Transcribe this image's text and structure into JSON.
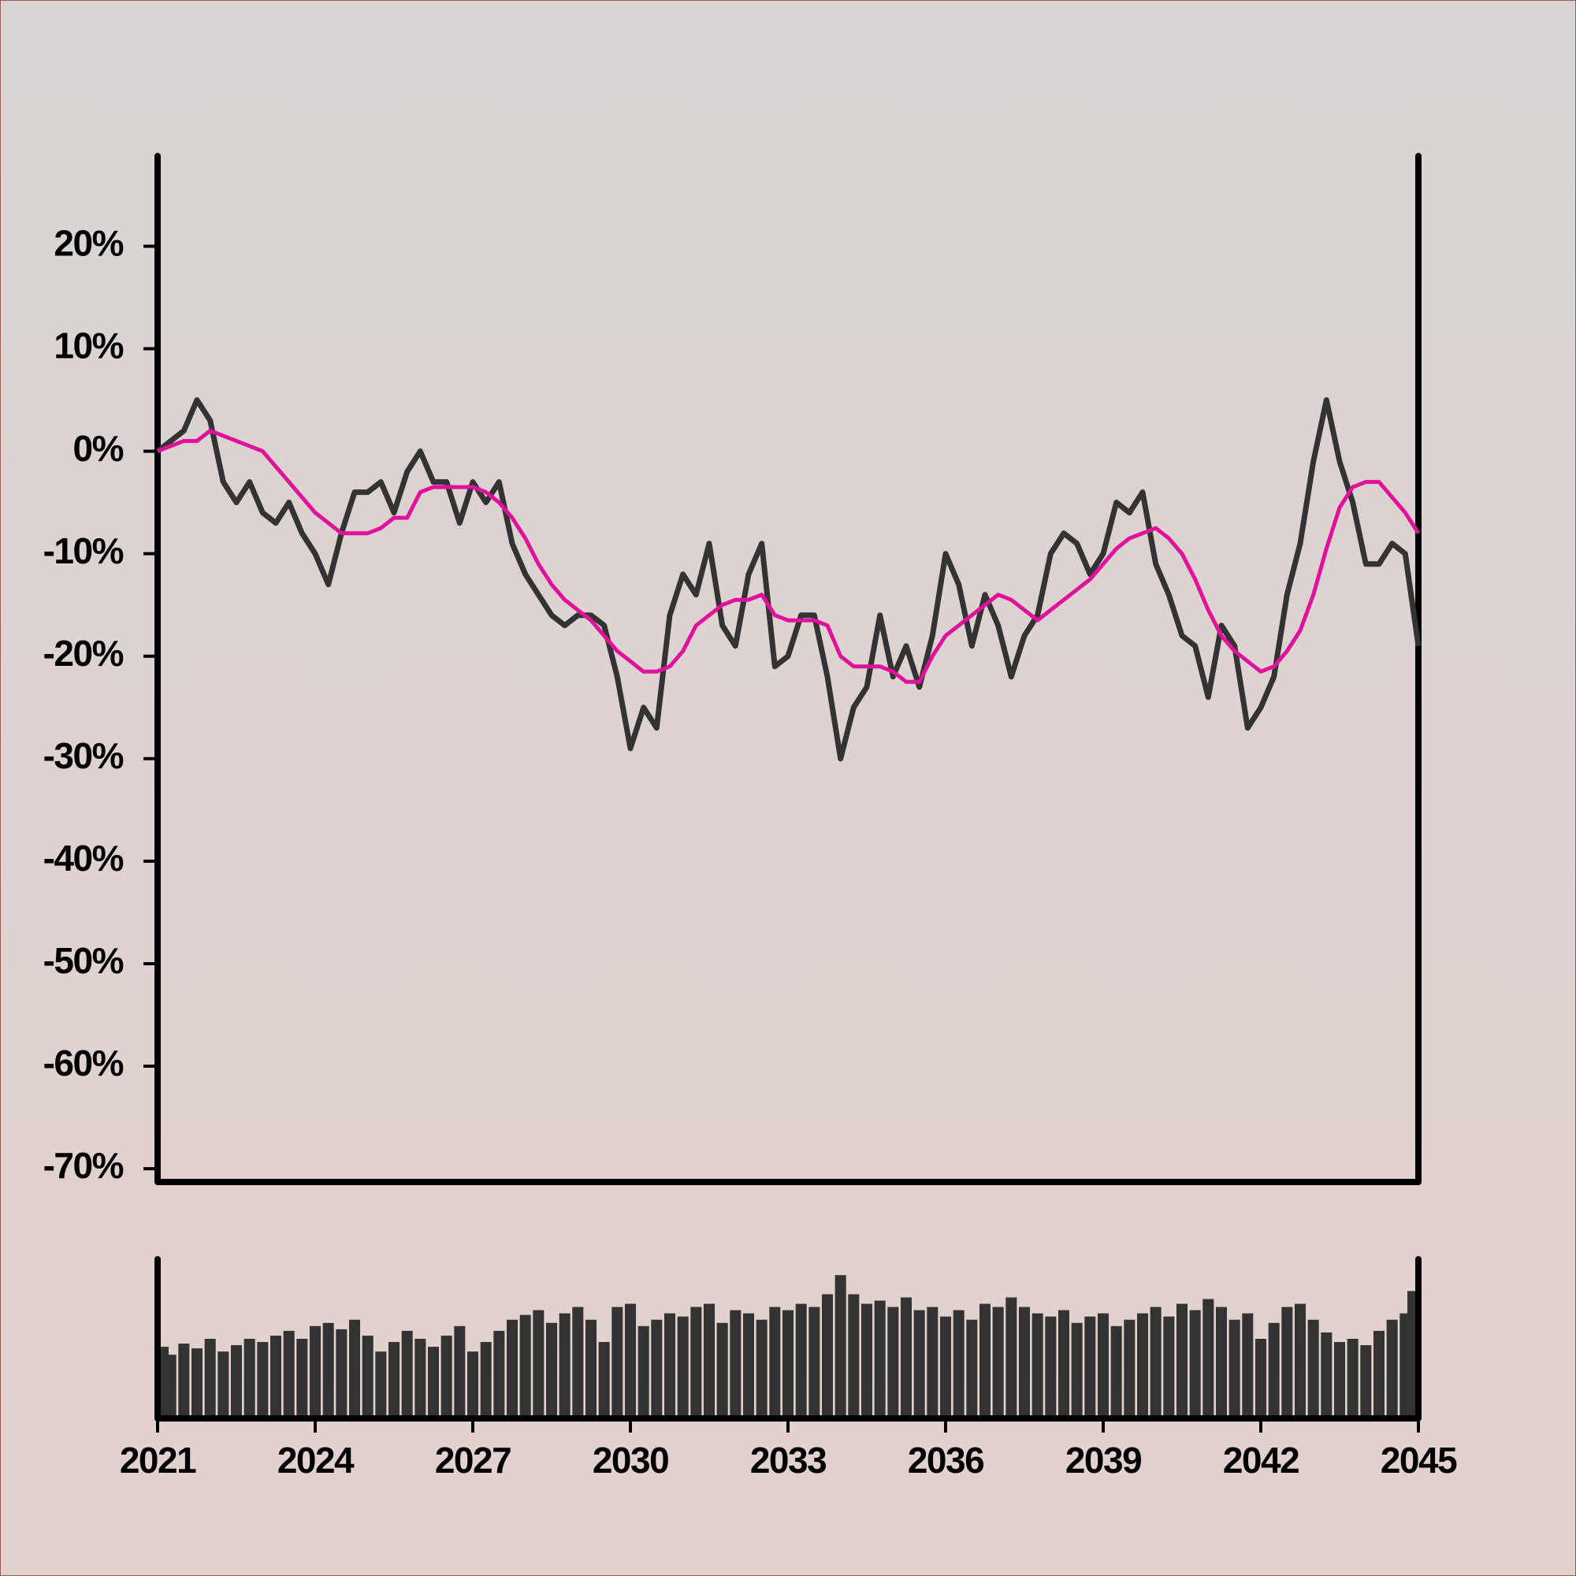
{
  "chart_data": [
    {
      "type": "line",
      "x": [
        2021,
        2021.25,
        2021.5,
        2021.75,
        2022,
        2022.25,
        2022.5,
        2022.75,
        2023,
        2023.25,
        2023.5,
        2023.75,
        2024,
        2024.25,
        2024.5,
        2024.75,
        2025,
        2025.25,
        2025.5,
        2025.75,
        2026,
        2026.25,
        2026.5,
        2026.75,
        2027,
        2027.25,
        2027.5,
        2027.75,
        2028,
        2028.25,
        2028.5,
        2028.75,
        2029,
        2029.25,
        2029.5,
        2029.75,
        2030,
        2030.25,
        2030.5,
        2030.75,
        2031,
        2031.25,
        2031.5,
        2031.75,
        2032,
        2032.25,
        2032.5,
        2032.75,
        2033,
        2033.25,
        2033.5,
        2033.75,
        2034,
        2034.25,
        2034.5,
        2034.75,
        2035,
        2035.25,
        2035.5,
        2035.75,
        2036,
        2036.25,
        2036.5,
        2036.75,
        2037,
        2037.25,
        2037.5,
        2037.75,
        2038,
        2038.25,
        2038.5,
        2038.75,
        2039,
        2039.25,
        2039.5,
        2039.75,
        2040,
        2040.25,
        2040.5,
        2040.75,
        2041,
        2041.25,
        2041.5,
        2041.75,
        2042,
        2042.25,
        2042.5,
        2042.75,
        2043,
        2043.25,
        2043.5,
        2043.75,
        2044,
        2044.25,
        2044.5,
        2044.75,
        2045
      ],
      "series": [
        {
          "color": "#333333",
          "values": [
            0,
            1,
            2,
            5,
            3,
            -3,
            -5,
            -3,
            -6,
            -7,
            -5,
            -8,
            -10,
            -13,
            -8,
            -4,
            -4,
            -3,
            -6,
            -2,
            0,
            -3,
            -3,
            -7,
            -3,
            -5,
            -3,
            -9,
            -12,
            -14,
            -16,
            -17,
            -16,
            -16,
            -17,
            -22,
            -29,
            -25,
            -27,
            -16,
            -12,
            -14,
            -9,
            -17,
            -19,
            -12,
            -9,
            -21,
            -20,
            -16,
            -16,
            -22,
            -30,
            -25,
            -23,
            -16,
            -22,
            -19,
            -23,
            -18,
            -10,
            -13,
            -19,
            -14,
            -17,
            -22,
            -18,
            -16,
            -10,
            -8,
            -9,
            -12,
            -10,
            -5,
            -6,
            -4,
            -11,
            -14,
            -18,
            -19,
            -24,
            -17,
            -19,
            -27,
            -25,
            -22,
            -14,
            -9,
            -1,
            5,
            -1,
            -5,
            -11,
            -11,
            -9,
            -10,
            -19
          ]
        },
        {
          "color": "#e0119a",
          "values": [
            0,
            0.5,
            1,
            1,
            2,
            1.5,
            1,
            0.5,
            0,
            -1.5,
            -3,
            -4.5,
            -6,
            -7,
            -8,
            -8,
            -8,
            -7.5,
            -6.5,
            -6.5,
            -4,
            -3.5,
            -3.5,
            -3.5,
            -3.5,
            -4,
            -5,
            -6.5,
            -8.5,
            -11,
            -13,
            -14.5,
            -15.5,
            -16.5,
            -18,
            -19.5,
            -20.5,
            -21.5,
            -21.5,
            -21,
            -19.5,
            -17,
            -16,
            -15,
            -14.5,
            -14.5,
            -14,
            -16,
            -16.5,
            -16.5,
            -16.5,
            -17,
            -20,
            -21,
            -21,
            -21,
            -21.5,
            -22.5,
            -22.5,
            -20,
            -18,
            -17,
            -16,
            -15,
            -14,
            -14.5,
            -15.5,
            -16.5,
            -15.5,
            -14.5,
            -13.5,
            -12.5,
            -11,
            -9.5,
            -8.5,
            -8,
            -7.5,
            -8.5,
            -10,
            -12.5,
            -15.5,
            -18,
            -19.5,
            -20.5,
            -21.5,
            -21,
            -19.5,
            -17.5,
            -14,
            -9.5,
            -5.5,
            -3.5,
            -3,
            -3,
            -4.5,
            -6,
            -8
          ]
        }
      ],
      "xlim": [
        2021,
        2045
      ],
      "ylim": [
        -71.3,
        28.8
      ],
      "yticks": [
        {
          "value": 20,
          "label": "20%"
        },
        {
          "value": 10,
          "label": "10%"
        },
        {
          "value": 0,
          "label": "0%"
        },
        {
          "value": -10,
          "label": "-10%"
        },
        {
          "value": -20,
          "label": "-20%"
        },
        {
          "value": -30,
          "label": "-30%"
        },
        {
          "value": -40,
          "label": "-40%"
        },
        {
          "value": -50,
          "label": "-50%"
        },
        {
          "value": -60,
          "label": "-60%"
        },
        {
          "value": -70,
          "label": "-70%"
        }
      ]
    },
    {
      "type": "bar",
      "x": [
        2021,
        2021.25,
        2021.5,
        2021.75,
        2022,
        2022.25,
        2022.5,
        2022.75,
        2023,
        2023.25,
        2023.5,
        2023.75,
        2024,
        2024.25,
        2024.5,
        2024.75,
        2025,
        2025.25,
        2025.5,
        2025.75,
        2026,
        2026.25,
        2026.5,
        2026.75,
        2027,
        2027.25,
        2027.5,
        2027.75,
        2028,
        2028.25,
        2028.5,
        2028.75,
        2029,
        2029.25,
        2029.5,
        2029.75,
        2030,
        2030.25,
        2030.5,
        2030.75,
        2031,
        2031.25,
        2031.5,
        2031.75,
        2032,
        2032.25,
        2032.5,
        2032.75,
        2033,
        2033.25,
        2033.5,
        2033.75,
        2034,
        2034.25,
        2034.5,
        2034.75,
        2035,
        2035.25,
        2035.5,
        2035.75,
        2036,
        2036.25,
        2036.5,
        2036.75,
        2037,
        2037.25,
        2037.5,
        2037.75,
        2038,
        2038.25,
        2038.5,
        2038.75,
        2039,
        2039.25,
        2039.5,
        2039.75,
        2040,
        2040.25,
        2040.5,
        2040.75,
        2041,
        2041.25,
        2041.5,
        2041.75,
        2042,
        2042.25,
        2042.5,
        2042.75,
        2043,
        2043.25,
        2043.5,
        2043.75,
        2044,
        2044.25,
        2044.5,
        2044.75,
        2045
      ],
      "values": [
        45,
        40,
        47,
        44,
        50,
        42,
        46,
        50,
        48,
        52,
        55,
        50,
        58,
        60,
        56,
        62,
        52,
        42,
        48,
        55,
        50,
        45,
        52,
        58,
        42,
        48,
        55,
        62,
        65,
        68,
        60,
        66,
        70,
        62,
        48,
        70,
        72,
        58,
        62,
        66,
        64,
        70,
        72,
        60,
        68,
        66,
        62,
        70,
        68,
        72,
        70,
        78,
        90,
        78,
        72,
        74,
        70,
        76,
        68,
        70,
        64,
        68,
        62,
        72,
        70,
        76,
        70,
        66,
        64,
        68,
        60,
        64,
        66,
        58,
        62,
        66,
        70,
        64,
        72,
        68,
        75,
        70,
        62,
        66,
        50,
        60,
        70,
        72,
        62,
        54,
        48,
        50,
        46,
        55,
        62,
        66,
        80
      ],
      "color": "#333333",
      "xlim": [
        2021,
        2045
      ],
      "ylim": [
        0,
        100
      ],
      "xticks": [
        2021,
        2024,
        2027,
        2030,
        2033,
        2036,
        2039,
        2042,
        2045
      ]
    }
  ]
}
